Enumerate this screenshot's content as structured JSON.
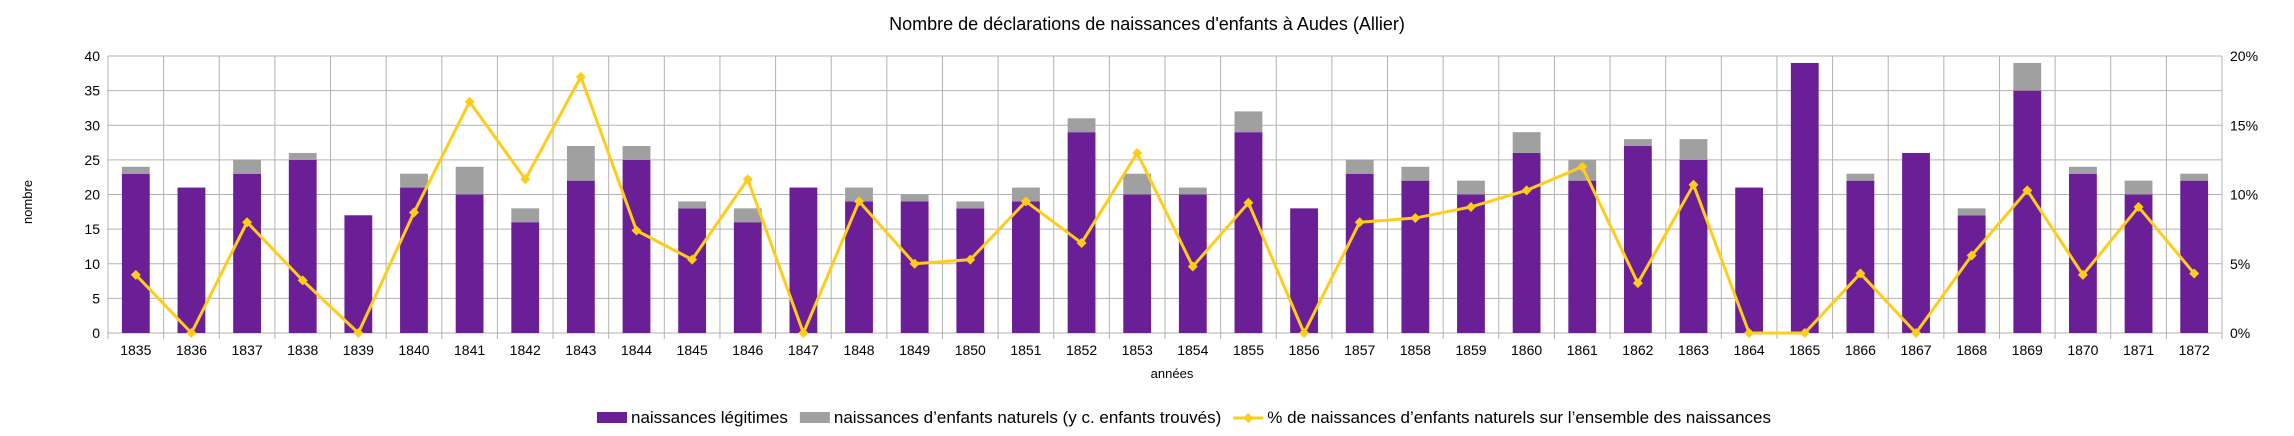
{
  "chart_data": {
    "type": "bar",
    "stacked": true,
    "title": "Nombre de déclarations de naissances d'enfants à Audes (Allier)",
    "xlabel": "années",
    "ylabel": "nombre",
    "ylim": [
      0,
      40
    ],
    "y_ticks": [
      "0",
      "5",
      "10",
      "15",
      "20",
      "25",
      "30",
      "35",
      "40"
    ],
    "y2lim": [
      0,
      20
    ],
    "y2_ticks": [
      "0%",
      "5%",
      "10%",
      "15%",
      "20%"
    ],
    "grid": true,
    "legend_position": "bottom",
    "categories": [
      "1835",
      "1836",
      "1837",
      "1838",
      "1839",
      "1840",
      "1841",
      "1842",
      "1843",
      "1844",
      "1845",
      "1846",
      "1847",
      "1848",
      "1849",
      "1850",
      "1851",
      "1852",
      "1853",
      "1854",
      "1855",
      "1856",
      "1857",
      "1858",
      "1859",
      "1860",
      "1861",
      "1862",
      "1863",
      "1864",
      "1865",
      "1866",
      "1867",
      "1868",
      "1869",
      "1870",
      "1871",
      "1872"
    ],
    "series": [
      {
        "name": "naissances légitimes",
        "type": "bar",
        "color": "#6b1f97",
        "values": [
          23,
          21,
          23,
          25,
          17,
          21,
          20,
          16,
          22,
          25,
          18,
          16,
          21,
          19,
          19,
          18,
          19,
          29,
          20,
          20,
          29,
          18,
          23,
          22,
          20,
          26,
          22,
          27,
          25,
          21,
          39,
          22,
          26,
          17,
          35,
          23,
          20,
          22
        ]
      },
      {
        "name": "naissances d’enfants naturels (y c. enfants trouvés)",
        "type": "bar",
        "color": "#a0a0a0",
        "values": [
          1,
          0,
          2,
          1,
          0,
          2,
          4,
          2,
          5,
          2,
          1,
          2,
          0,
          2,
          1,
          1,
          2,
          2,
          3,
          1,
          3,
          0,
          2,
          2,
          2,
          3,
          3,
          1,
          3,
          0,
          0,
          1,
          0,
          1,
          4,
          1,
          2,
          1
        ]
      },
      {
        "name": "% de naissances d’enfants naturels sur l’ensemble des naissances",
        "type": "line",
        "axis": "right",
        "color": "#ffcc1a",
        "values": [
          4.2,
          0,
          8.0,
          3.8,
          0,
          8.7,
          16.7,
          11.1,
          18.5,
          7.4,
          5.3,
          11.1,
          0,
          9.5,
          5.0,
          5.3,
          9.5,
          6.5,
          13.0,
          4.8,
          9.4,
          0,
          8.0,
          8.3,
          9.1,
          10.3,
          12.0,
          3.6,
          10.7,
          0,
          0,
          4.3,
          0,
          5.6,
          10.3,
          4.2,
          9.1,
          4.3
        ]
      }
    ]
  }
}
